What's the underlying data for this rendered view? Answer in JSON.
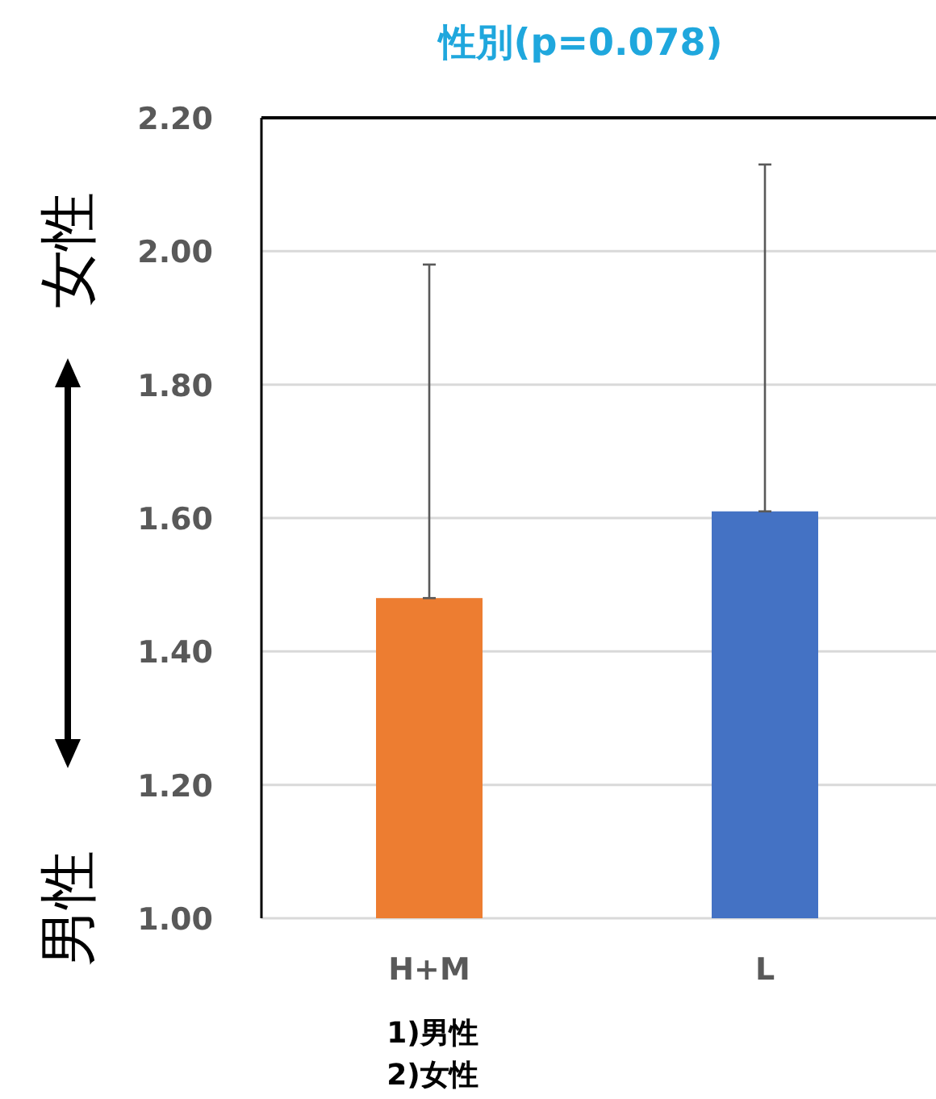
{
  "chart_data": {
    "type": "bar",
    "title": "性別(p=0.078)",
    "categories": [
      "H+M",
      "L"
    ],
    "values": [
      1.48,
      1.61
    ],
    "colors": [
      "#ed7d31",
      "#4472c4"
    ],
    "errors": [
      [
        1.48,
        1.98
      ],
      [
        1.61,
        2.13
      ]
    ],
    "ylim": [
      1.0,
      2.2
    ],
    "yticks": [
      {
        "value": 1.0,
        "label": "1.00"
      },
      {
        "value": 1.2,
        "label": "1.20"
      },
      {
        "value": 1.4,
        "label": "1.40"
      },
      {
        "value": 1.6,
        "label": "1.60"
      },
      {
        "value": 1.8,
        "label": "1.80"
      },
      {
        "value": 2.0,
        "label": "2.00"
      },
      {
        "value": 2.2,
        "label": "2.20"
      }
    ],
    "grid": "y",
    "annotations": [
      "女性",
      "男性",
      "1)男性",
      "2)女性"
    ]
  }
}
